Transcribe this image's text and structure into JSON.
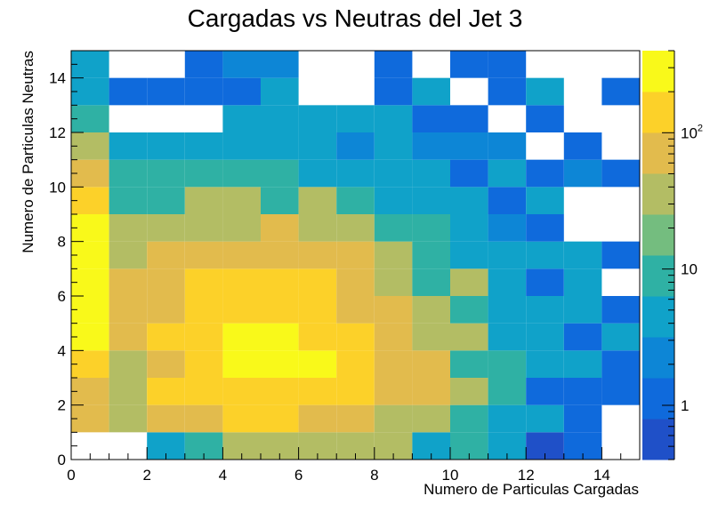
{
  "chart_data": {
    "type": "heatmap",
    "title": "Cargadas vs Neutras del Jet 3",
    "xlabel": "Numero de Particulas Cargadas",
    "ylabel": "Numero de Particulas Neutras",
    "xlim": [
      0,
      15
    ],
    "ylim": [
      0,
      15
    ],
    "x_ticks": [
      "0",
      "2",
      "4",
      "6",
      "8",
      "10",
      "12",
      "14"
    ],
    "y_ticks": [
      "0",
      "2",
      "4",
      "6",
      "8",
      "10",
      "12",
      "14"
    ],
    "z_scale": "log",
    "z_range": [
      0.4,
      400
    ],
    "z_ticks": [
      {
        "base": "1",
        "exp": "",
        "value": 1
      },
      {
        "base": "10",
        "exp": "",
        "value": 10
      },
      {
        "base": "10",
        "exp": "2",
        "value": 100
      }
    ],
    "bin_size": 1,
    "x_bins_start": 0,
    "y_bins_start": 0,
    "values": [
      [
        0,
        0,
        6,
        12,
        30,
        30,
        30,
        30,
        30,
        6,
        12,
        6,
        0.7,
        1,
        0,
        0
      ],
      [
        70,
        30,
        70,
        70,
        120,
        120,
        70,
        70,
        30,
        30,
        12,
        4,
        4,
        0.8,
        0,
        0
      ],
      [
        70,
        30,
        120,
        120,
        120,
        120,
        120,
        120,
        70,
        70,
        30,
        12,
        1.5,
        0.8,
        0.8,
        0
      ],
      [
        120,
        30,
        70,
        120,
        300,
        300,
        300,
        120,
        70,
        70,
        12,
        12,
        6,
        4,
        1.3,
        0
      ],
      [
        300,
        70,
        120,
        120,
        300,
        300,
        120,
        120,
        70,
        30,
        30,
        6,
        6,
        0.8,
        4,
        0
      ],
      [
        300,
        70,
        70,
        120,
        120,
        120,
        120,
        70,
        70,
        30,
        12,
        4,
        4,
        4,
        1.5,
        0
      ],
      [
        300,
        70,
        70,
        120,
        120,
        120,
        120,
        70,
        30,
        12,
        30,
        6,
        1.5,
        4,
        0,
        0
      ],
      [
        300,
        30,
        70,
        70,
        70,
        70,
        70,
        70,
        30,
        12,
        4,
        4,
        6,
        4,
        0.8,
        0
      ],
      [
        300,
        30,
        30,
        30,
        30,
        70,
        30,
        30,
        12,
        12,
        6,
        2,
        0.8,
        0,
        0,
        0
      ],
      [
        120,
        12,
        12,
        30,
        30,
        12,
        30,
        12,
        6,
        4,
        4,
        0.8,
        4,
        0,
        0,
        0
      ],
      [
        70,
        12,
        12,
        12,
        12,
        12,
        6,
        6,
        4,
        4,
        0.8,
        4,
        0.8,
        2,
        0.8,
        0
      ],
      [
        30,
        4,
        6,
        4,
        4,
        6,
        4,
        2,
        4,
        2,
        2,
        2,
        0,
        0.8,
        0,
        0
      ],
      [
        12,
        0,
        0,
        0,
        4,
        4,
        4,
        4,
        4,
        1.3,
        1.3,
        0,
        1.3,
        0,
        0,
        0
      ],
      [
        4,
        1.3,
        1.3,
        1.3,
        1.3,
        4,
        0,
        0,
        1.3,
        4,
        0,
        1.3,
        4,
        0,
        0.8,
        0
      ],
      [
        4,
        0,
        0,
        1.3,
        2,
        2,
        0,
        0,
        1.3,
        0,
        1.3,
        1.3,
        0,
        0,
        0,
        0
      ]
    ],
    "palette": [
      "#1f50c8",
      "#0f6adc",
      "#0d86d6",
      "#10a2c9",
      "#2fb1a4",
      "#74bd7f",
      "#b3bd64",
      "#e2bb4d",
      "#fcd129",
      "#f9f91a"
    ],
    "grid": false,
    "legend": "right color scale"
  }
}
